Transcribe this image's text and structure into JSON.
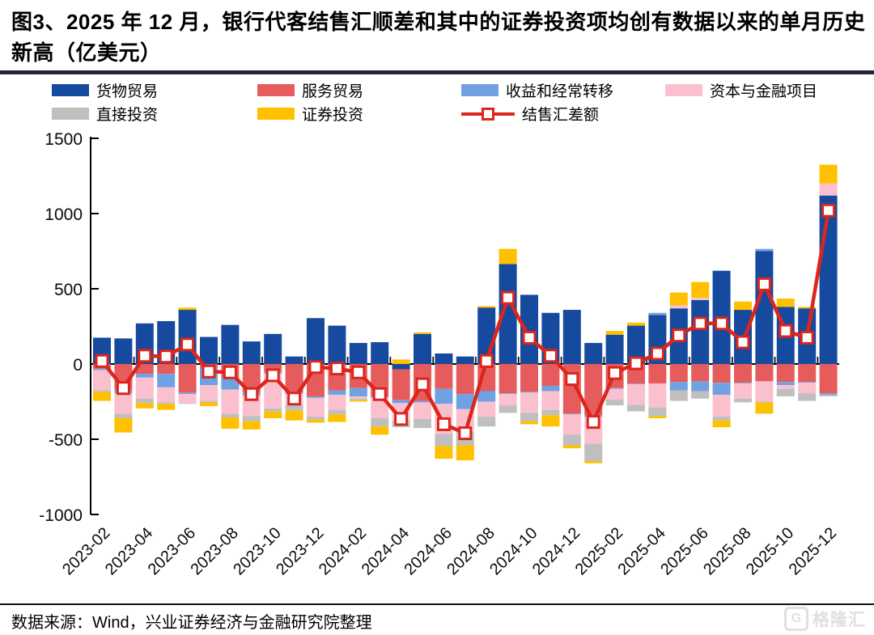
{
  "page": {
    "title": "图3、2025 年 12 月，银行代客结售汇顺差和其中的证券投资项均创有数据以来的单月历史新高（亿美元）",
    "source": "数据来源：Wind，兴业证券经济与金融研究院整理",
    "watermark_text": "格隆汇",
    "watermark_glyph": "G"
  },
  "colors": {
    "goods_blue": "#164A9E",
    "services_red": "#E65C5C",
    "income_lightblue": "#6FA1E3",
    "capital_pink": "#FBC0CE",
    "direct_gray": "#BFBFBF",
    "securities_yellow": "#FFC000",
    "balance_line_red": "#DC251C",
    "title_rule": "#232838",
    "axis_black": "#000000"
  },
  "chart_data": {
    "type": "bar",
    "subtype": "stacked-bar-with-line",
    "title": "图3、2025 年 12 月，银行代客结售汇顺差和其中的证券投资项均创有数据以来的单月历史新高（亿美元）",
    "unit": "亿美元",
    "ylim": [
      -1000,
      1500
    ],
    "y_ticks": [
      1500,
      1000,
      500,
      0,
      -500,
      -1000
    ],
    "grid": "off",
    "legend_position": "top",
    "categories": [
      "2023-02",
      "2023-03",
      "2023-04",
      "2023-05",
      "2023-06",
      "2023-07",
      "2023-08",
      "2023-09",
      "2023-10",
      "2023-11",
      "2023-12",
      "2024-01",
      "2024-02",
      "2024-03",
      "2024-04",
      "2024-05",
      "2024-06",
      "2024-07",
      "2024-08",
      "2024-09",
      "2024-10",
      "2024-11",
      "2024-12",
      "2025-01",
      "2025-02",
      "2025-03",
      "2025-04",
      "2025-05",
      "2025-06",
      "2025-07",
      "2025-08",
      "2025-09",
      "2025-10",
      "2025-11",
      "2025-12"
    ],
    "x_tick_labels": [
      "2023-02",
      "2023-04",
      "2023-06",
      "2023-08",
      "2023-10",
      "2023-12",
      "2024-02",
      "2024-04",
      "2024-06",
      "2024-08",
      "2024-10",
      "2024-12",
      "2025-02",
      "2025-04",
      "2025-06",
      "2025-08",
      "2025-10",
      "2025-12"
    ],
    "series": [
      {
        "key": "goods",
        "name": "货物贸易",
        "color": "#164A9E",
        "values": [
          175,
          170,
          270,
          285,
          360,
          180,
          260,
          150,
          200,
          50,
          305,
          255,
          140,
          145,
          -35,
          200,
          70,
          50,
          375,
          665,
          460,
          340,
          360,
          140,
          195,
          255,
          325,
          370,
          425,
          620,
          360,
          750,
          380,
          370,
          1120
        ]
      },
      {
        "key": "services",
        "name": "服务贸易",
        "color": "#E65C5C",
        "values": [
          -30,
          -170,
          -65,
          -65,
          -190,
          -25,
          -90,
          -190,
          -50,
          -190,
          -215,
          -175,
          -160,
          -215,
          -205,
          -245,
          -165,
          -200,
          -180,
          -195,
          -185,
          -145,
          -330,
          -340,
          -160,
          -130,
          -130,
          -120,
          -115,
          -125,
          -125,
          -115,
          -120,
          -120,
          -195
        ]
      },
      {
        "key": "income",
        "name": "收益和经常转移",
        "color": "#6FA1E3",
        "values": [
          -10,
          -25,
          -25,
          -90,
          -10,
          -115,
          -80,
          -20,
          -15,
          -10,
          -10,
          -30,
          -55,
          -10,
          -20,
          -10,
          -100,
          -100,
          -70,
          -5,
          -5,
          -35,
          -5,
          -10,
          -5,
          -5,
          15,
          -55,
          -65,
          -80,
          -5,
          15,
          -20,
          -5,
          -10
        ]
      },
      {
        "key": "capital",
        "name": "资本与金融项目",
        "color": "#FBC0CE",
        "values": [
          -135,
          -135,
          -140,
          -100,
          -60,
          -105,
          -160,
          -135,
          -230,
          -70,
          -125,
          -100,
          -15,
          -135,
          -110,
          -110,
          -200,
          -150,
          -100,
          -75,
          -135,
          -125,
          -135,
          -180,
          -70,
          -135,
          -160,
          20,
          15,
          -145,
          -100,
          -135,
          -25,
          -70,
          80
        ]
      },
      {
        "key": "direct",
        "name": "直接投资",
        "color": "#BFBFBF",
        "values": [
          -10,
          -30,
          -30,
          -10,
          -5,
          -10,
          -25,
          -35,
          -20,
          -40,
          -20,
          -30,
          -10,
          -55,
          -50,
          -60,
          -80,
          -90,
          -65,
          -50,
          -55,
          -35,
          -70,
          -115,
          -40,
          -45,
          -55,
          -70,
          -50,
          -25,
          -25,
          -5,
          -50,
          -50,
          -10
        ]
      },
      {
        "key": "securities",
        "name": "证券投资",
        "color": "#FFC000",
        "values": [
          -60,
          -95,
          -35,
          -40,
          15,
          -25,
          -75,
          -55,
          -45,
          -65,
          -20,
          -50,
          -10,
          -55,
          30,
          10,
          -85,
          -100,
          10,
          100,
          -20,
          -75,
          -20,
          -15,
          25,
          20,
          -15,
          85,
          105,
          -45,
          55,
          -75,
          55,
          10,
          125
        ]
      }
    ],
    "line_series": {
      "key": "balance",
      "name": "结售汇差额",
      "color": "#DC251C",
      "marker": "open-square",
      "values": [
        20,
        -160,
        55,
        50,
        130,
        -50,
        -55,
        -200,
        -75,
        -230,
        -20,
        -30,
        -55,
        -200,
        -365,
        -135,
        -400,
        -460,
        20,
        440,
        175,
        55,
        -100,
        -385,
        -60,
        5,
        70,
        190,
        270,
        270,
        145,
        530,
        220,
        175,
        1020
      ]
    },
    "legend": [
      {
        "key": "goods",
        "label": "货物贸易",
        "type": "swatch",
        "color": "#164A9E"
      },
      {
        "key": "services",
        "label": "服务贸易",
        "type": "swatch",
        "color": "#E65C5C"
      },
      {
        "key": "income",
        "label": "收益和经常转移",
        "type": "swatch",
        "color": "#6FA1E3"
      },
      {
        "key": "capital",
        "label": "资本与金融项目",
        "type": "swatch",
        "color": "#FBC0CE"
      },
      {
        "key": "direct",
        "label": "直接投资",
        "type": "swatch",
        "color": "#BFBFBF"
      },
      {
        "key": "securities",
        "label": "证券投资",
        "type": "swatch",
        "color": "#FFC000"
      },
      {
        "key": "balance",
        "label": "结售汇差额",
        "type": "line",
        "color": "#DC251C"
      }
    ]
  }
}
